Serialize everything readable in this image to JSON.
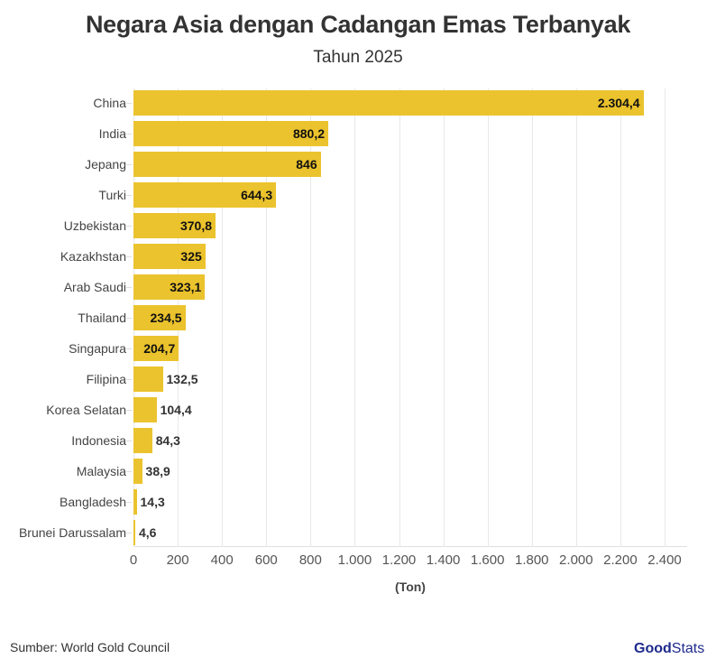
{
  "header": {
    "title": "Negara Asia dengan Cadangan Emas Terbanyak",
    "subtitle": "Tahun 2025"
  },
  "footer": {
    "source": "Sumber: World Gold Council",
    "logo_bold": "Good",
    "logo_light": "Stats"
  },
  "colors": {
    "bar": "#ebc32e",
    "logo": "#1e2a8c"
  },
  "chart_data": {
    "type": "bar",
    "orientation": "horizontal",
    "title": "Negara Asia dengan Cadangan Emas Terbanyak",
    "subtitle": "Tahun 2025",
    "xlabel": "(Ton)",
    "ylabel": "",
    "xlim": [
      0,
      2500
    ],
    "grid": true,
    "categories": [
      "China",
      "India",
      "Jepang",
      "Turki",
      "Uzbekistan",
      "Kazakhstan",
      "Arab Saudi",
      "Thailand",
      "Singapura",
      "Filipina",
      "Korea Selatan",
      "Indonesia",
      "Malaysia",
      "Bangladesh",
      "Brunei Darussalam"
    ],
    "values": [
      2304.4,
      880.2,
      846,
      644.3,
      370.8,
      325,
      323.1,
      234.5,
      204.7,
      132.5,
      104.4,
      84.3,
      38.9,
      14.3,
      4.6
    ],
    "labels": [
      "2.304,4",
      "880,2",
      "846",
      "644,3",
      "370,8",
      "325",
      "323,1",
      "234,5",
      "204,7",
      "132,5",
      "104,4",
      "84,3",
      "38,9",
      "14,3",
      "4,6"
    ],
    "xticks": [
      0,
      200,
      400,
      600,
      800,
      1000,
      1200,
      1400,
      1600,
      1800,
      2000,
      2200,
      2400
    ],
    "xtick_labels": [
      "0",
      "200",
      "400",
      "600",
      "800",
      "1.000",
      "1.200",
      "1.400",
      "1.600",
      "1.800",
      "2.000",
      "2.200",
      "2.400"
    ],
    "source": "World Gold Council"
  }
}
